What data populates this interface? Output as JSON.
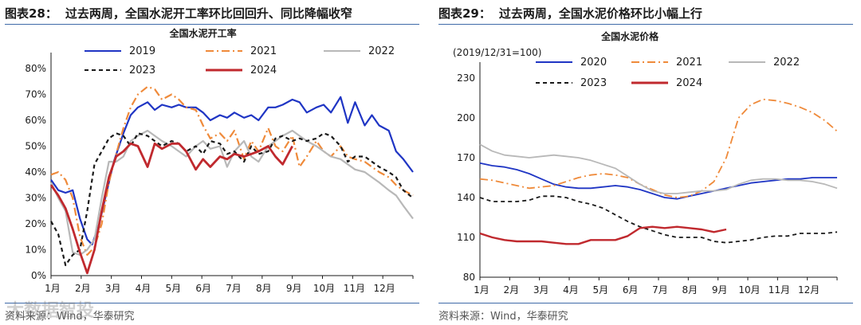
{
  "chart_data": [
    {
      "type": "line",
      "figure_label": "图表28：",
      "figure_title": "过去两周，全国水泥开工率环比回回升、同比降幅收窄",
      "title": "全国水泥开工率",
      "xlabel": "",
      "ylabel": "",
      "x_ticks": [
        "1月",
        "2月",
        "3月",
        "4月",
        "5月",
        "6月",
        "7月",
        "8月",
        "9月",
        "10月",
        "11月",
        "12月"
      ],
      "y_ticks": [
        "0%",
        "10%",
        "20%",
        "30%",
        "40%",
        "50%",
        "60%",
        "70%",
        "80%"
      ],
      "ylim": [
        0,
        80
      ],
      "y_unit": "%",
      "source": "资料来源：Wind，华泰研究",
      "series": [
        {
          "name": "2019",
          "color": "#1f35c4",
          "dash": "solid",
          "x": [
            0,
            0.3,
            0.6,
            0.9,
            1.2,
            1.5,
            1.7,
            2.0,
            2.3,
            2.6,
            3.0,
            3.3,
            3.6,
            4.0,
            4.3,
            4.6,
            5.0,
            5.3,
            5.6,
            6.0,
            6.3,
            6.6,
            7.0,
            7.3,
            7.6,
            8.0,
            8.3,
            8.6,
            9.0,
            9.3,
            9.6,
            10.0,
            10.3,
            10.6,
            11.0,
            11.3,
            11.6,
            12.0,
            12.3,
            12.6,
            13.0,
            13.3,
            13.6,
            14.0,
            14.3,
            14.6,
            15.0
          ],
          "values": [
            37,
            33,
            32,
            33,
            22,
            14,
            12,
            20,
            32,
            44,
            55,
            62,
            65,
            67,
            64,
            66,
            65,
            66,
            65,
            65,
            63,
            60,
            62,
            61,
            63,
            61,
            62,
            60,
            65,
            65,
            66,
            68,
            67,
            63,
            65,
            66,
            63,
            69,
            59,
            67,
            58,
            62,
            58,
            56,
            48,
            45,
            40
          ]
        },
        {
          "name": "2021",
          "color": "#ef8a3a",
          "dash": "dashdot",
          "x": [
            0,
            0.3,
            0.6,
            0.9,
            1.2,
            1.5,
            1.8,
            2.1,
            2.4,
            2.7,
            3.0,
            3.3,
            3.6,
            4.0,
            4.3,
            4.6,
            5.0,
            5.3,
            5.6,
            6.0,
            6.3,
            6.6,
            7.0,
            7.3,
            7.6,
            8.0,
            8.3,
            8.6,
            9.0,
            9.3,
            9.6,
            10.0,
            10.3,
            10.6,
            11.0,
            11.3,
            11.6,
            12.0,
            12.3,
            12.6,
            13.0,
            13.3,
            13.6,
            14.0,
            14.3,
            14.6,
            15.0
          ],
          "values": [
            39,
            40,
            37,
            30,
            15,
            8,
            11,
            20,
            36,
            47,
            57,
            65,
            70,
            73,
            72,
            68,
            70,
            68,
            65,
            64,
            58,
            53,
            55,
            52,
            56,
            45,
            52,
            48,
            57,
            50,
            48,
            54,
            42,
            46,
            52,
            48,
            46,
            50,
            46,
            45,
            44,
            42,
            40,
            38,
            35,
            33,
            31
          ]
        },
        {
          "name": "2022",
          "color": "#b8b8b8",
          "dash": "solid",
          "x": [
            0,
            0.3,
            0.6,
            0.9,
            1.2,
            1.5,
            1.8,
            2.1,
            2.4,
            2.7,
            3.0,
            3.3,
            3.6,
            4.0,
            4.3,
            4.6,
            5.0,
            5.3,
            5.6,
            6.0,
            6.3,
            6.6,
            7.0,
            7.3,
            7.6,
            8.0,
            8.3,
            8.6,
            9.0,
            9.3,
            9.6,
            10.0,
            10.3,
            10.6,
            11.0,
            11.3,
            11.6,
            12.0,
            12.3,
            12.6,
            13.0,
            13.3,
            13.6,
            14.0,
            14.3,
            14.6,
            15.0
          ],
          "values": [
            36,
            30,
            25,
            9,
            8,
            10,
            14,
            30,
            44,
            44,
            46,
            52,
            54,
            56,
            54,
            52,
            50,
            48,
            46,
            50,
            52,
            49,
            50,
            42,
            48,
            52,
            46,
            44,
            50,
            52,
            54,
            56,
            54,
            52,
            50,
            48,
            46,
            45,
            43,
            41,
            40,
            38,
            36,
            33,
            31,
            27,
            22
          ]
        },
        {
          "name": "2023",
          "color": "#1a1a1a",
          "dash": "dashed",
          "x": [
            0,
            0.3,
            0.6,
            0.9,
            1.2,
            1.5,
            1.8,
            2.1,
            2.4,
            2.7,
            3.0,
            3.3,
            3.6,
            4.0,
            4.3,
            4.6,
            5.0,
            5.3,
            5.6,
            6.0,
            6.3,
            6.6,
            7.0,
            7.3,
            7.6,
            8.0,
            8.3,
            8.6,
            9.0,
            9.3,
            9.6,
            10.0,
            10.3,
            10.6,
            11.0,
            11.3,
            11.6,
            12.0,
            12.3,
            12.6,
            13.0,
            13.3,
            13.6,
            14.0,
            14.3,
            14.6,
            15.0
          ],
          "values": [
            21,
            16,
            4,
            8,
            10,
            25,
            43,
            48,
            53,
            55,
            54,
            50,
            55,
            54,
            52,
            50,
            52,
            51,
            48,
            50,
            47,
            52,
            51,
            47,
            48,
            44,
            50,
            47,
            48,
            53,
            54,
            52,
            53,
            52,
            53,
            55,
            54,
            50,
            44,
            46,
            46,
            44,
            42,
            40,
            38,
            33,
            30
          ]
        },
        {
          "name": "2024",
          "color": "#c0292e",
          "dash": "solid",
          "x": [
            0,
            0.3,
            0.6,
            0.9,
            1.2,
            1.5,
            1.8,
            2.1,
            2.4,
            2.7,
            3.0,
            3.3,
            3.6,
            4.0,
            4.3,
            4.6,
            5.0,
            5.3,
            5.6,
            6.0,
            6.3,
            6.6,
            7.0,
            7.3,
            7.6,
            8.0,
            8.3,
            8.6,
            9.0,
            9.3,
            9.6,
            10.0
          ],
          "values": [
            35,
            31,
            26,
            18,
            9,
            1,
            10,
            25,
            38,
            46,
            48,
            51,
            50,
            42,
            51,
            49,
            51,
            51,
            48,
            41,
            45,
            42,
            46,
            45,
            47,
            46,
            47,
            48,
            50,
            46,
            43,
            50
          ]
        }
      ]
    },
    {
      "type": "line",
      "figure_label": "图表29：",
      "figure_title": "过去两周，全国水泥价格环比小幅上行",
      "title": "全国水泥价格",
      "ylabel": "(2019/12/31=100)",
      "xlabel": "",
      "x_ticks": [
        "1月",
        "2月",
        "3月",
        "4月",
        "5月",
        "6月",
        "7月",
        "8月",
        "9月",
        "10月",
        "11月",
        "12月"
      ],
      "y_ticks": [
        "80",
        "110",
        "140",
        "170",
        "200",
        "230"
      ],
      "ylim": [
        80,
        230
      ],
      "source": "资料来源：Wind，华泰研究",
      "series": [
        {
          "name": "2020",
          "color": "#1f35c4",
          "dash": "solid",
          "x": [
            0,
            0.5,
            1.0,
            1.5,
            2.0,
            2.5,
            3.0,
            3.5,
            4.0,
            4.5,
            5.0,
            5.5,
            6.0,
            6.5,
            7.0,
            7.5,
            8.0,
            8.5,
            9.0,
            9.5,
            10.0,
            10.5,
            11.0,
            11.5,
            12.0,
            12.5,
            13.0,
            13.5,
            14.0,
            14.5
          ],
          "values": [
            166,
            164,
            163,
            161,
            158,
            154,
            150,
            148,
            147,
            147,
            148,
            149,
            148,
            146,
            143,
            140,
            139,
            141,
            143,
            145,
            147,
            149,
            151,
            152,
            153,
            154,
            154,
            155,
            155,
            155
          ]
        },
        {
          "name": "2021",
          "color": "#ef8a3a",
          "dash": "dashdot",
          "x": [
            0,
            0.5,
            1.0,
            1.5,
            2.0,
            2.5,
            3.0,
            3.5,
            4.0,
            4.5,
            5.0,
            5.5,
            6.0,
            6.5,
            7.0,
            7.5,
            8.0,
            8.5,
            9.0,
            9.5,
            10.0,
            10.5,
            11.0,
            11.5,
            12.0,
            12.5,
            13.0,
            13.5,
            14.0,
            14.5
          ],
          "values": [
            154,
            153,
            151,
            149,
            147,
            148,
            149,
            152,
            155,
            157,
            158,
            157,
            155,
            150,
            146,
            142,
            140,
            141,
            145,
            152,
            170,
            200,
            210,
            214,
            213,
            211,
            208,
            204,
            198,
            190
          ]
        },
        {
          "name": "2022",
          "color": "#b8b8b8",
          "dash": "solid",
          "x": [
            0,
            0.5,
            1.0,
            1.5,
            2.0,
            2.5,
            3.0,
            3.5,
            4.0,
            4.5,
            5.0,
            5.5,
            6.0,
            6.5,
            7.0,
            7.5,
            8.0,
            8.5,
            9.0,
            9.5,
            10.0,
            10.5,
            11.0,
            11.5,
            12.0,
            12.5,
            13.0,
            13.5,
            14.0,
            14.5
          ],
          "values": [
            180,
            175,
            172,
            171,
            170,
            171,
            172,
            171,
            170,
            168,
            165,
            162,
            156,
            150,
            145,
            143,
            143,
            144,
            145,
            145,
            146,
            150,
            153,
            154,
            154,
            153,
            153,
            152,
            150,
            147
          ]
        },
        {
          "name": "2023",
          "color": "#1a1a1a",
          "dash": "dashed",
          "x": [
            0,
            0.5,
            1.0,
            1.5,
            2.0,
            2.5,
            3.0,
            3.5,
            4.0,
            4.5,
            5.0,
            5.5,
            6.0,
            6.5,
            7.0,
            7.5,
            8.0,
            8.5,
            9.0,
            9.5,
            10.0,
            10.5,
            11.0,
            11.5,
            12.0,
            12.5,
            13.0,
            13.5,
            14.0,
            14.5
          ],
          "values": [
            140,
            137,
            137,
            137,
            138,
            141,
            141,
            140,
            137,
            135,
            132,
            127,
            122,
            118,
            115,
            112,
            110,
            110,
            110,
            107,
            106,
            107,
            108,
            110,
            111,
            111,
            113,
            113,
            113,
            114
          ]
        },
        {
          "name": "2024",
          "color": "#c0292e",
          "dash": "solid",
          "x": [
            0,
            0.5,
            1.0,
            1.5,
            2.0,
            2.5,
            3.0,
            3.5,
            4.0,
            4.5,
            5.0,
            5.5,
            6.0,
            6.5,
            7.0,
            7.5,
            8.0,
            8.5,
            9.0,
            9.5,
            10.0
          ],
          "values": [
            113,
            110,
            108,
            107,
            107,
            107,
            106,
            105,
            105,
            108,
            108,
            108,
            111,
            117,
            118,
            117,
            118,
            117,
            116,
            114,
            116
          ]
        }
      ]
    }
  ],
  "watermark": "大数据智投"
}
